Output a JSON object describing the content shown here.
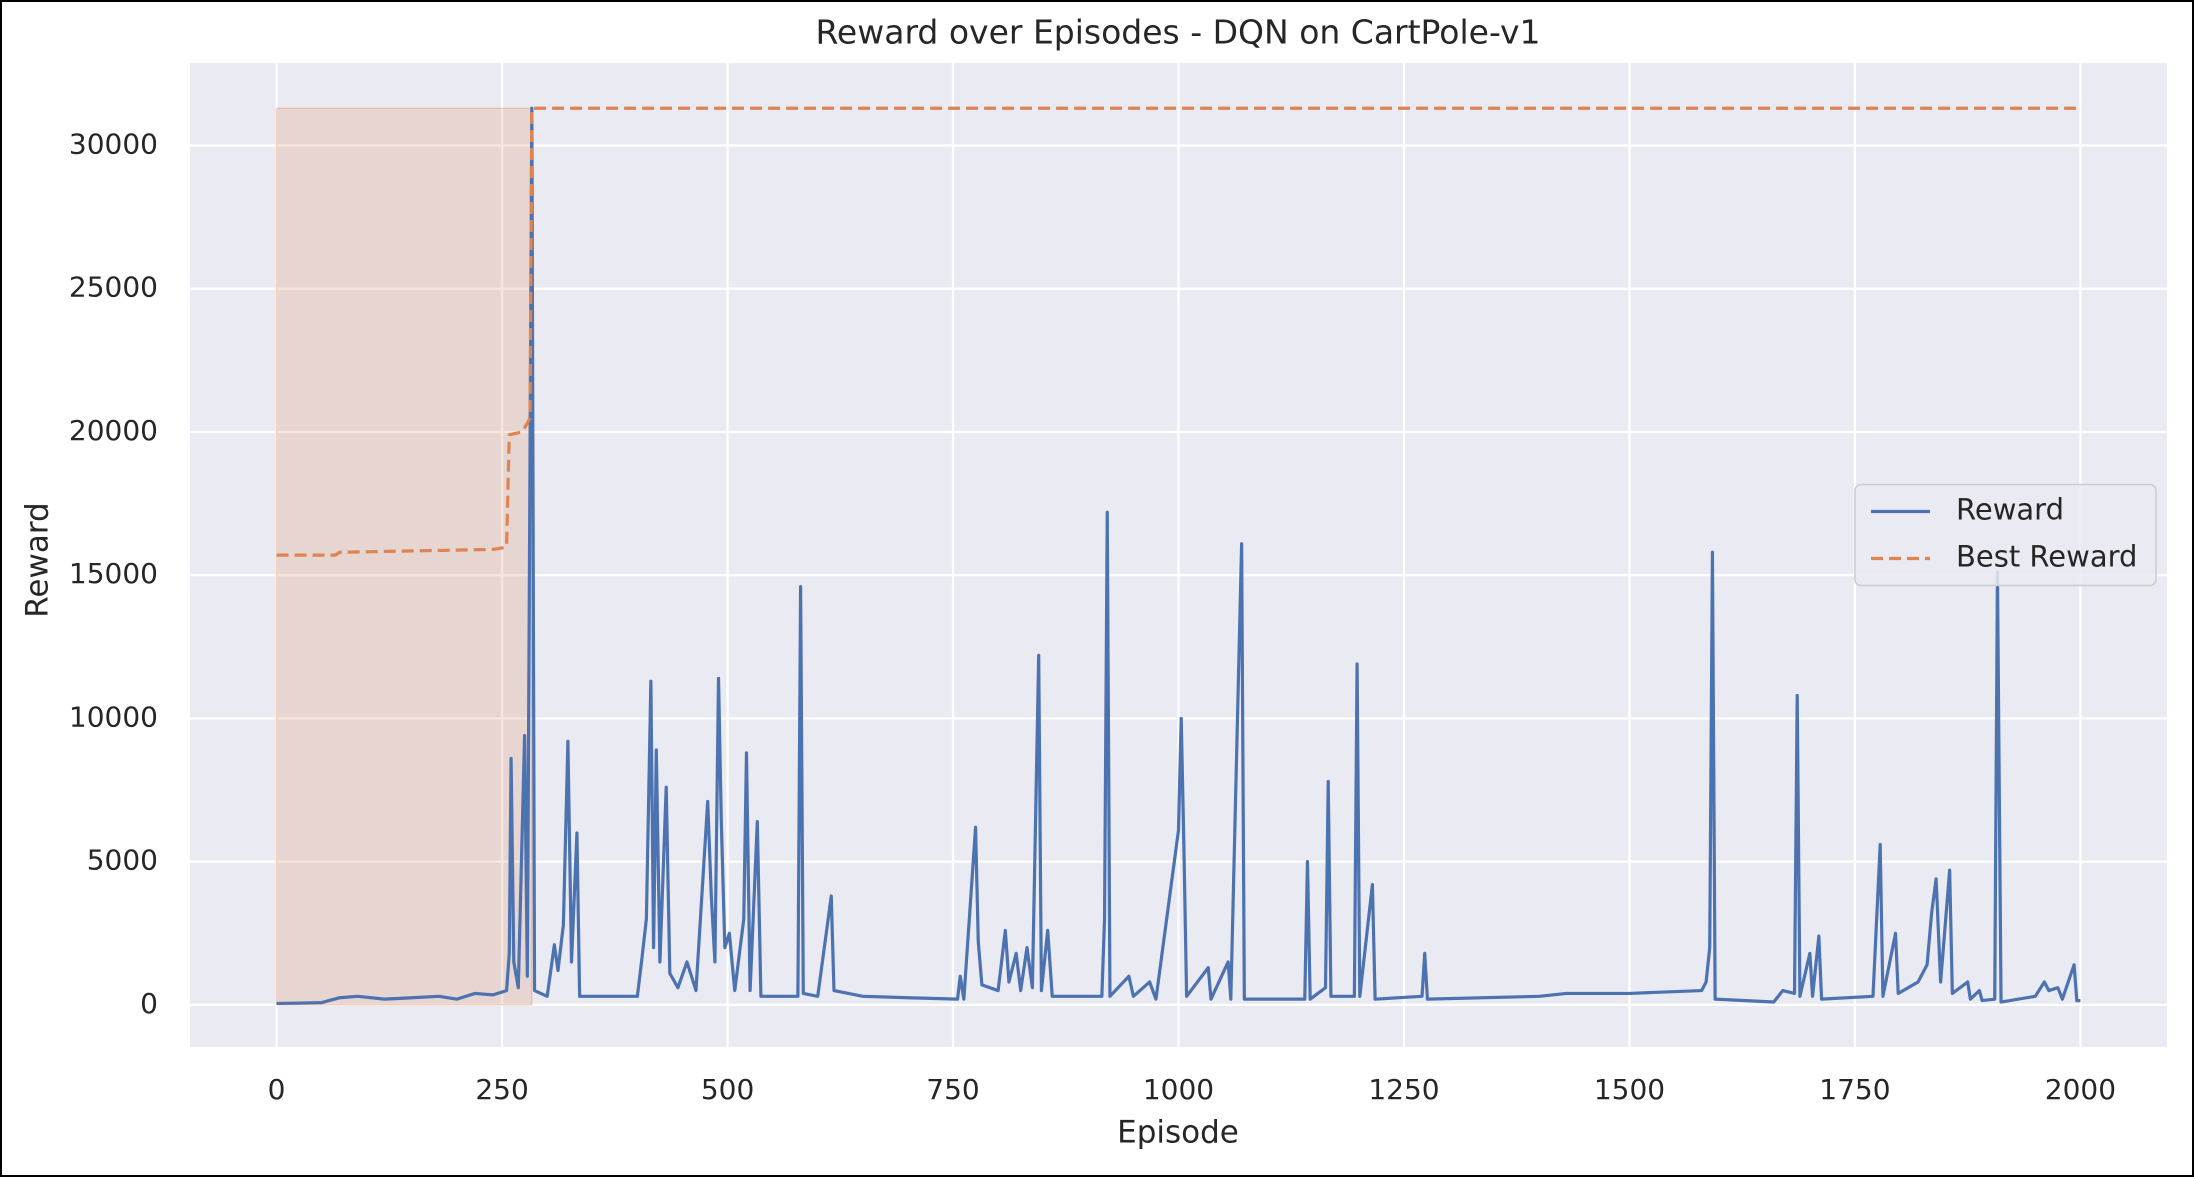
{
  "chart_data": {
    "type": "line",
    "title": "Reward over Episodes - DQN on CartPole-v1",
    "x_label": "Episode",
    "y_label": "Reward",
    "xlim": [
      -96,
      2096
    ],
    "ylim": [
      -1470,
      32880
    ],
    "xticks": [
      0,
      250,
      500,
      750,
      1000,
      1250,
      1500,
      1750,
      2000
    ],
    "yticks": [
      0,
      5000,
      10000,
      15000,
      20000,
      25000,
      30000
    ],
    "grid": true,
    "legend": "center right",
    "shaded_region": {
      "x": [
        0,
        283
      ],
      "y": [
        0,
        31300
      ],
      "color": "#dd8452"
    },
    "series": [
      {
        "name": "Reward",
        "color": "#4c72b0",
        "style": "solid",
        "x": [
          0,
          20,
          50,
          70,
          90,
          120,
          150,
          180,
          200,
          220,
          240,
          255,
          258,
          260,
          263,
          268,
          275,
          278,
          283,
          286,
          300,
          308,
          312,
          318,
          323,
          327,
          333,
          336,
          400,
          405,
          410,
          415,
          418,
          421,
          425,
          432,
          436,
          445,
          455,
          465,
          478,
          482,
          486,
          490,
          493,
          497,
          502,
          508,
          518,
          521,
          525,
          533,
          537,
          578,
          581,
          584,
          600,
          615,
          618,
          650,
          700,
          755,
          758,
          762,
          775,
          778,
          782,
          800,
          808,
          812,
          820,
          825,
          832,
          838,
          845,
          848,
          855,
          860,
          915,
          918,
          921,
          924,
          945,
          950,
          968,
          975,
          1000,
          1003,
          1006,
          1009,
          1033,
          1036,
          1055,
          1058,
          1070,
          1073,
          1140,
          1143,
          1146,
          1163,
          1166,
          1169,
          1195,
          1198,
          1201,
          1215,
          1218,
          1270,
          1273,
          1276,
          1400,
          1430,
          1500,
          1580,
          1585,
          1589,
          1592,
          1595,
          1660,
          1670,
          1683,
          1686,
          1689,
          1700,
          1703,
          1710,
          1713,
          1770,
          1778,
          1781,
          1795,
          1798,
          1820,
          1830,
          1835,
          1840,
          1845,
          1855,
          1858,
          1875,
          1878,
          1888,
          1891,
          1905,
          1908,
          1912,
          1950,
          1960,
          1965,
          1975,
          1980,
          1993,
          1996,
          2000
        ],
        "values": [
          50,
          60,
          80,
          250,
          300,
          200,
          250,
          300,
          200,
          400,
          350,
          500,
          1800,
          8600,
          1500,
          600,
          9400,
          1000,
          31300,
          500,
          300,
          2100,
          1200,
          2800,
          9200,
          1500,
          6000,
          300,
          300,
          1600,
          3000,
          11300,
          2000,
          8900,
          1500,
          7600,
          1100,
          600,
          1500,
          500,
          7100,
          3800,
          1500,
          11400,
          6500,
          2000,
          2500,
          500,
          3000,
          8800,
          500,
          6400,
          300,
          300,
          14600,
          400,
          300,
          3800,
          500,
          300,
          250,
          200,
          1000,
          200,
          6200,
          2200,
          700,
          500,
          2600,
          800,
          1800,
          500,
          2000,
          600,
          12200,
          500,
          2600,
          300,
          300,
          3000,
          17200,
          300,
          1000,
          300,
          800,
          200,
          6100,
          10000,
          5500,
          300,
          1300,
          200,
          1500,
          200,
          16100,
          200,
          200,
          5000,
          200,
          600,
          7800,
          300,
          300,
          11900,
          300,
          4200,
          200,
          300,
          1800,
          200,
          300,
          400,
          400,
          500,
          800,
          2000,
          15800,
          200,
          100,
          500,
          400,
          10800,
          300,
          1800,
          300,
          2400,
          200,
          300,
          5600,
          300,
          2500,
          400,
          800,
          1400,
          3200,
          4400,
          800,
          4700,
          400,
          800,
          200,
          500,
          150,
          200,
          15100,
          100,
          300,
          800,
          500,
          600,
          200,
          1400,
          150,
          150
        ]
      },
      {
        "name": "Best Reward",
        "color": "#dd8452",
        "style": "dashed",
        "x": [
          0,
          65,
          70,
          240,
          250,
          255,
          258,
          272,
          278,
          281,
          283,
          2000
        ],
        "values": [
          15700,
          15700,
          15800,
          15900,
          15950,
          16000,
          19900,
          20000,
          20300,
          20500,
          31300,
          31300
        ]
      }
    ]
  }
}
